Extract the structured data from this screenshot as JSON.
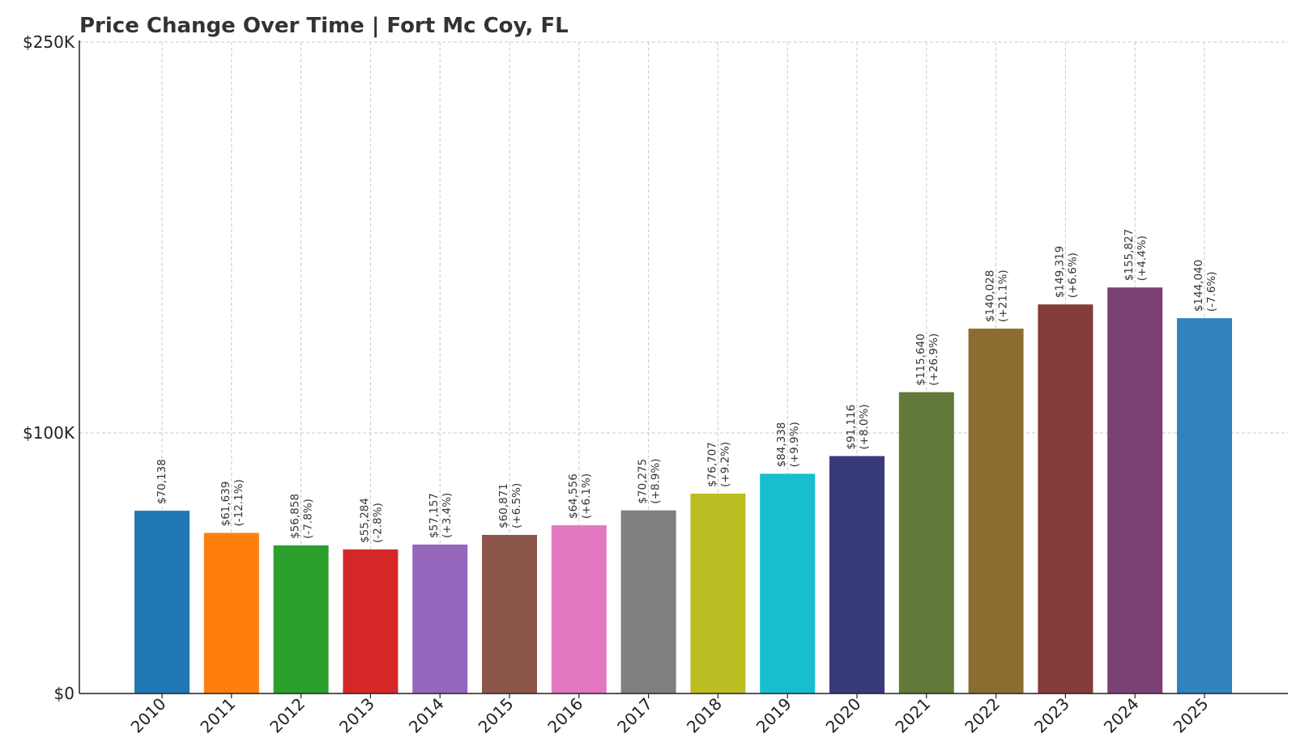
{
  "chart_data": {
    "type": "bar",
    "title": "Price Change Over Time | Fort Mc Coy, FL",
    "xlabel": "",
    "ylabel": "",
    "ylim": [
      0,
      250000
    ],
    "yticks": [
      {
        "value": 0,
        "label": "$0"
      },
      {
        "value": 100000,
        "label": "$100K"
      },
      {
        "value": 250000,
        "label": "$250K"
      }
    ],
    "grid": true,
    "categories": [
      "2010",
      "2011",
      "2012",
      "2013",
      "2014",
      "2015",
      "2016",
      "2017",
      "2018",
      "2019",
      "2020",
      "2021",
      "2022",
      "2023",
      "2024",
      "2025"
    ],
    "values": [
      70138,
      61639,
      56858,
      55284,
      57157,
      60871,
      64556,
      70275,
      76707,
      84338,
      91116,
      115640,
      140028,
      149319,
      155827,
      144040
    ],
    "value_labels": [
      "$70,138",
      "$61,639",
      "$56,858",
      "$55,284",
      "$57,157",
      "$60,871",
      "$64,556",
      "$70,275",
      "$76,707",
      "$84,338",
      "$91,116",
      "$115,640",
      "$140,028",
      "$149,319",
      "$155,827",
      "$144,040"
    ],
    "change_labels": [
      "",
      "(-12.1%)",
      "(-7.8%)",
      "(-2.8%)",
      "(+3.4%)",
      "(+6.5%)",
      "(+6.1%)",
      "(+8.9%)",
      "(+9.2%)",
      "(+9.9%)",
      "(+8.0%)",
      "(+26.9%)",
      "(+21.1%)",
      "(+6.6%)",
      "(+4.4%)",
      "(-7.6%)"
    ],
    "colors": [
      "#1f77b4",
      "#ff7f0e",
      "#2ca02c",
      "#d62728",
      "#9467bd",
      "#8c564b",
      "#e377c2",
      "#7f7f7f",
      "#bcbd22",
      "#17becf",
      "#393b79",
      "#637939",
      "#8c6d31",
      "#843c39",
      "#7b4173",
      "#3182bd"
    ]
  }
}
